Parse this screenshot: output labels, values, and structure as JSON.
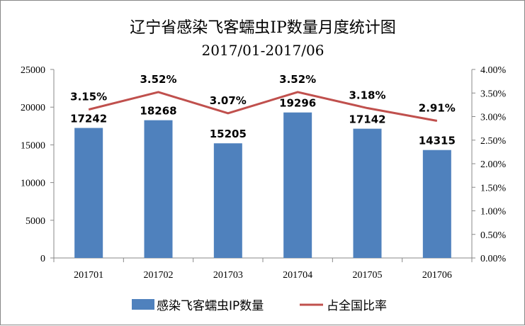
{
  "chart_data": {
    "type": "bar+line",
    "title": "辽宁省感染飞客蠕虫IP数量月度统计图",
    "subtitle": "2017/01-2017/06",
    "categories": [
      "201701",
      "201702",
      "201703",
      "201704",
      "201705",
      "201706"
    ],
    "series": [
      {
        "name": "感染飞客蠕虫IP数量",
        "type": "bar",
        "axis": "left",
        "color": "#4F81BD",
        "values": [
          17242,
          18268,
          15205,
          19296,
          17142,
          14315
        ],
        "labels": [
          "17242",
          "18268",
          "15205",
          "19296",
          "17142",
          "14315"
        ]
      },
      {
        "name": "占全国比率",
        "type": "line",
        "axis": "right",
        "color": "#C0504D",
        "values": [
          3.15,
          3.52,
          3.07,
          3.52,
          3.18,
          2.91
        ],
        "labels": [
          "3.15%",
          "3.52%",
          "3.07%",
          "3.52%",
          "3.18%",
          "2.91%"
        ]
      }
    ],
    "left_axis": {
      "ylim": [
        0,
        25000
      ],
      "ticks": [
        "0",
        "5000",
        "10000",
        "15000",
        "20000",
        "25000"
      ]
    },
    "right_axis": {
      "ylim": [
        0,
        4
      ],
      "ticks": [
        "0.00%",
        "0.50%",
        "1.00%",
        "1.50%",
        "2.00%",
        "2.50%",
        "3.00%",
        "3.50%",
        "4.00%"
      ]
    },
    "grid": false,
    "legend": "bottom"
  }
}
